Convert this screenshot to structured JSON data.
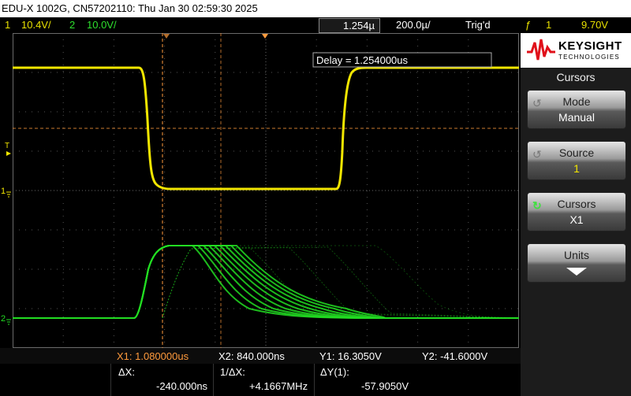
{
  "titlebar": {
    "text": "EDU-X 1002G, CN57202110: Thu Jan 30 02:59:30 2025"
  },
  "status": {
    "ch1_num": "1",
    "ch1_scale": "10.4V/",
    "ch2_num": "2",
    "ch2_scale": "10.0V/",
    "delay_box": "1.254µ",
    "timebase": "200.0µ/",
    "trig_state": "Trig'd",
    "trig_symbol": "ƒ",
    "trig_ch": "1",
    "trig_level": "9.70V"
  },
  "screen": {
    "delay_label": "Delay = 1.254000us",
    "marker_t": "T",
    "marker_ch1": "1",
    "marker_ch2": "2",
    "colors": {
      "ch1": "#f2e600",
      "ch2": "#22dd22",
      "cursor": "#ff9a3c",
      "grid": "#6a6a6a"
    }
  },
  "panel": {
    "brand": "KEYSIGHT",
    "brand_sub": "TECHNOLOGIES",
    "menu_title": "Cursors",
    "softkeys": [
      {
        "l1": "Mode",
        "l2": "Manual"
      },
      {
        "l1": "Source",
        "l2": "1"
      },
      {
        "l1": "Cursors",
        "l2": "X1"
      },
      {
        "l1": "Units",
        "l2": ""
      }
    ]
  },
  "readout": {
    "x1": "X1:  1.080000us",
    "x2": "X2:  840.000ns",
    "y1": "Y1:  16.3050V",
    "y2": "Y2: -41.6000V",
    "dx_label": "ΔX:",
    "dx_value": "-240.000ns",
    "inv_dx_label": "1/ΔX:",
    "inv_dx_value": "+4.1667MHz",
    "dy_label": "ΔY(1):",
    "dy_value": "-57.9050V"
  }
}
